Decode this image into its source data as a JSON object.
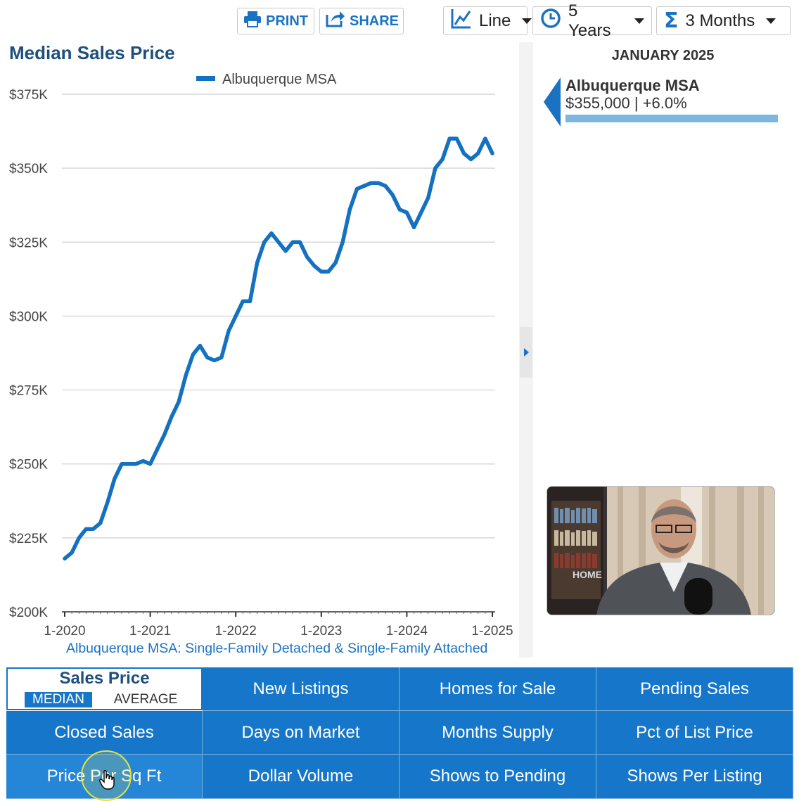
{
  "toolbar": {
    "print_label": "PRINT",
    "share_label": "SHARE",
    "chart_type": "Line",
    "time_range": "5 Years",
    "rolling": "3 Months"
  },
  "chart_data": {
    "type": "line",
    "title": "Median Sales Price",
    "series": [
      {
        "name": "Albuquerque MSA",
        "values": [
          218000,
          220000,
          225000,
          228000,
          228000,
          230000,
          237000,
          245000,
          250000,
          250000,
          250000,
          251000,
          250000,
          255000,
          260000,
          266000,
          271000,
          280000,
          287000,
          290000,
          286000,
          285000,
          286000,
          295000,
          300000,
          305000,
          305000,
          318000,
          325000,
          328000,
          325000,
          322000,
          325000,
          325000,
          320000,
          317000,
          315000,
          315000,
          318000,
          325000,
          336000,
          343000,
          344000,
          345000,
          345000,
          344000,
          341000,
          336000,
          335000,
          330000,
          335000,
          340000,
          350000,
          353000,
          360000,
          360000,
          355000,
          353000,
          355000,
          360000,
          355000
        ]
      }
    ],
    "x_tick_labels": [
      "1-2020",
      "1-2021",
      "1-2022",
      "1-2023",
      "1-2024",
      "1-2025"
    ],
    "y_tick_labels": [
      "$200K",
      "$225K",
      "$250K",
      "$275K",
      "$300K",
      "$325K",
      "$350K",
      "$375K"
    ],
    "ylim": [
      200000,
      375000
    ],
    "x_range": [
      "1-2020",
      "1-2025"
    ],
    "grid": true,
    "legend_position": "top",
    "color": "#1471c1",
    "footnote": "Albuquerque MSA: Single-Family Detached & Single-Family Attached"
  },
  "side_panel": {
    "month": "JANUARY 2025",
    "area_name": "Albuquerque MSA",
    "area_value": "$355,000 | +6.0%"
  },
  "metrics": {
    "active": {
      "title": "Sales Price",
      "option_selected": "MEDIAN",
      "option_other": "AVERAGE"
    },
    "cells": [
      "New Listings",
      "Homes for Sale",
      "Pending Sales",
      "Closed Sales",
      "Days on Market",
      "Months Supply",
      "Pct of List Price",
      "Price Per Sq Ft",
      "Dollar Volume",
      "Shows to Pending",
      "Shows Per Listing"
    ]
  },
  "webcam_image_text": "HOME",
  "colors": {
    "accent": "#1676c9",
    "title": "#1e4f7d",
    "line": "#1471c1"
  }
}
